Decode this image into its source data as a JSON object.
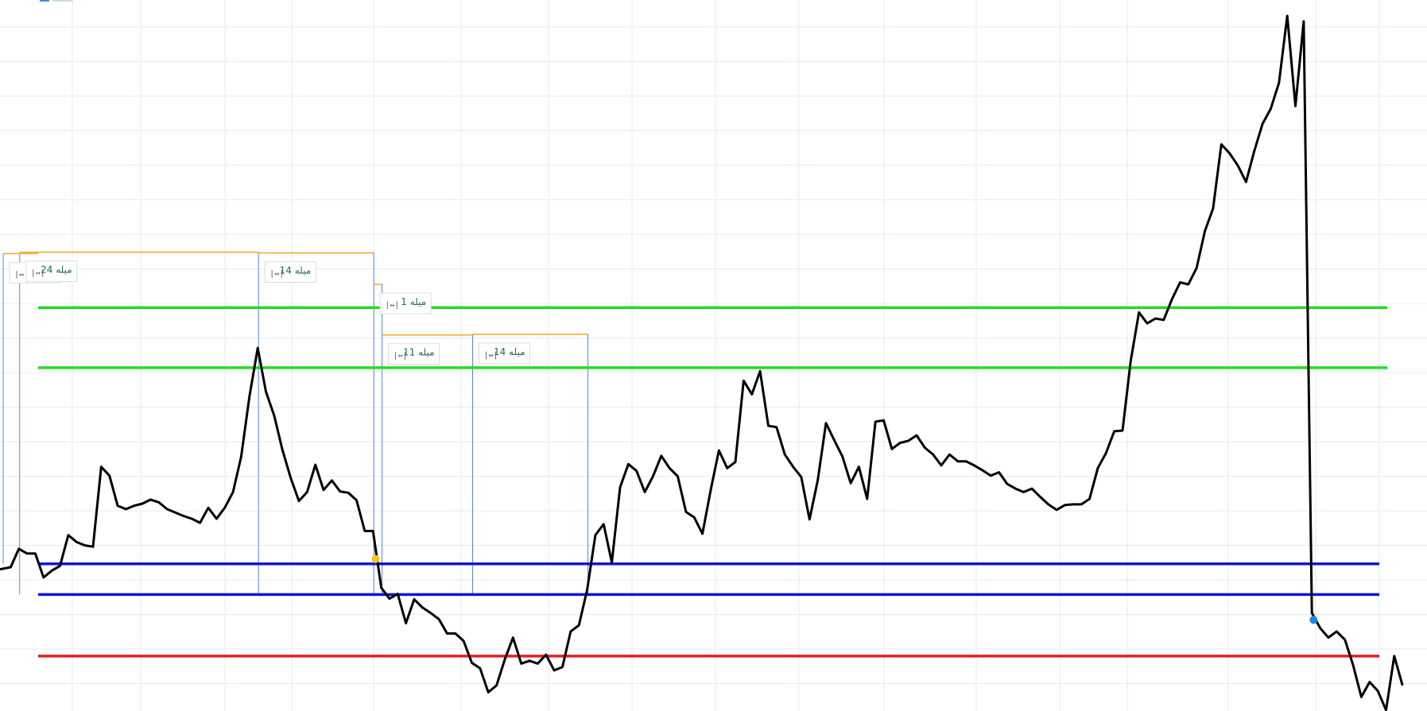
{
  "chart_data": {
    "type": "line",
    "title": "",
    "xlabel": "",
    "ylabel": "",
    "xlim": [
      -2,
      175
    ],
    "ylim": [
      0,
      100
    ],
    "grid": true,
    "series": [
      {
        "values": [
          [
            -1,
            19.0
          ],
          [
            0,
            19.3
          ],
          [
            1,
            22.0
          ],
          [
            2,
            21.3
          ],
          [
            3,
            21.3
          ],
          [
            4,
            17.8
          ],
          [
            5,
            18.8
          ],
          [
            6,
            19.5
          ],
          [
            7,
            24.0
          ],
          [
            8,
            23.0
          ],
          [
            9,
            22.5
          ],
          [
            10,
            22.3
          ],
          [
            11,
            34.0
          ],
          [
            12,
            32.7
          ],
          [
            13,
            28.3
          ],
          [
            14,
            27.8
          ],
          [
            15,
            28.3
          ],
          [
            16,
            28.6
          ],
          [
            17,
            29.2
          ],
          [
            18,
            28.8
          ],
          [
            19,
            27.8
          ],
          [
            20,
            27.3
          ],
          [
            21,
            26.8
          ],
          [
            22,
            26.4
          ],
          [
            23,
            25.8
          ],
          [
            24,
            28.0
          ],
          [
            25,
            26.4
          ],
          [
            26,
            28.0
          ],
          [
            27,
            30.3
          ],
          [
            28,
            35.5
          ],
          [
            29,
            44.3
          ],
          [
            30,
            51.4
          ],
          [
            31,
            45.0
          ],
          [
            32,
            41.5
          ],
          [
            33,
            36.5
          ],
          [
            34,
            32.4
          ],
          [
            35,
            29.0
          ],
          [
            36,
            30.3
          ],
          [
            37,
            34.3
          ],
          [
            38,
            30.6
          ],
          [
            39,
            32.0
          ],
          [
            40,
            30.4
          ],
          [
            41,
            30.2
          ],
          [
            42,
            29.1
          ],
          [
            43,
            24.6
          ],
          [
            44,
            24.6
          ],
          [
            45,
            16.3
          ],
          [
            46,
            14.7
          ],
          [
            47,
            15.4
          ],
          [
            48,
            11.1
          ],
          [
            49,
            14.6
          ],
          [
            50,
            13.4
          ],
          [
            51,
            12.6
          ],
          [
            52,
            11.7
          ],
          [
            53,
            9.6
          ],
          [
            54,
            9.6
          ],
          [
            55,
            8.5
          ],
          [
            56,
            5.3
          ],
          [
            57,
            4.5
          ],
          [
            58,
            1.0
          ],
          [
            59,
            2.0
          ],
          [
            60,
            5.8
          ],
          [
            61,
            9.0
          ],
          [
            62,
            5.2
          ],
          [
            63,
            5.6
          ],
          [
            64,
            5.2
          ],
          [
            65,
            6.5
          ],
          [
            66,
            4.2
          ],
          [
            67,
            4.7
          ],
          [
            68,
            9.9
          ],
          [
            69,
            10.8
          ],
          [
            70,
            16.0
          ],
          [
            71,
            24.0
          ],
          [
            72,
            25.6
          ],
          [
            73,
            20.0
          ],
          [
            74,
            31.0
          ],
          [
            75,
            34.4
          ],
          [
            76,
            33.4
          ],
          [
            77,
            30.3
          ],
          [
            78,
            32.6
          ],
          [
            79,
            35.6
          ],
          [
            80,
            33.8
          ],
          [
            81,
            32.6
          ],
          [
            82,
            27.4
          ],
          [
            83,
            26.6
          ],
          [
            84,
            24.2
          ],
          [
            85,
            30.6
          ],
          [
            86,
            36.4
          ],
          [
            87,
            33.8
          ],
          [
            88,
            34.7
          ],
          [
            89,
            46.6
          ],
          [
            90,
            44.6
          ],
          [
            91,
            48.0
          ],
          [
            92,
            40.0
          ],
          [
            93,
            39.8
          ],
          [
            94,
            35.8
          ],
          [
            95,
            34.0
          ],
          [
            96,
            32.5
          ],
          [
            97,
            26.3
          ],
          [
            98,
            32.0
          ],
          [
            99,
            40.4
          ],
          [
            100,
            37.9
          ],
          [
            101,
            35.5
          ],
          [
            102,
            31.6
          ],
          [
            103,
            34.0
          ],
          [
            104,
            29.3
          ],
          [
            105,
            40.6
          ],
          [
            106,
            40.8
          ],
          [
            107,
            36.6
          ],
          [
            108,
            37.5
          ],
          [
            109,
            37.8
          ],
          [
            110,
            38.6
          ],
          [
            111,
            36.8
          ],
          [
            112,
            35.8
          ],
          [
            113,
            34.2
          ],
          [
            114,
            35.8
          ],
          [
            115,
            34.8
          ],
          [
            116,
            34.8
          ],
          [
            117,
            34.2
          ],
          [
            118,
            33.5
          ],
          [
            119,
            32.7
          ],
          [
            120,
            33.2
          ],
          [
            121,
            31.5
          ],
          [
            122,
            30.8
          ],
          [
            123,
            30.3
          ],
          [
            124,
            30.8
          ],
          [
            125,
            29.6
          ],
          [
            126,
            28.5
          ],
          [
            127,
            27.7
          ],
          [
            128,
            28.4
          ],
          [
            129,
            28.5
          ],
          [
            130,
            28.5
          ],
          [
            131,
            29.3
          ],
          [
            132,
            33.8
          ],
          [
            133,
            36.0
          ],
          [
            134,
            39.2
          ],
          [
            135,
            39.3
          ],
          [
            136,
            49.5
          ],
          [
            137,
            56.6
          ],
          [
            138,
            55.0
          ],
          [
            139,
            55.7
          ],
          [
            140,
            55.5
          ],
          [
            141,
            58.5
          ],
          [
            142,
            61.0
          ],
          [
            143,
            60.7
          ],
          [
            144,
            63.1
          ],
          [
            145,
            68.5
          ],
          [
            146,
            71.8
          ],
          [
            147,
            81.2
          ],
          [
            148,
            79.9
          ],
          [
            149,
            78.1
          ],
          [
            150,
            75.7
          ],
          [
            151,
            80.2
          ],
          [
            152,
            84.2
          ],
          [
            153,
            86.4
          ],
          [
            154,
            90.2
          ],
          [
            155,
            100.0
          ],
          [
            156,
            86.8
          ],
          [
            157,
            99.2
          ],
          [
            158,
            12.6
          ],
          [
            159,
            10.4
          ],
          [
            160,
            9.0
          ],
          [
            161,
            9.9
          ],
          [
            162,
            8.7
          ],
          [
            163,
            5.0
          ],
          [
            164,
            0.3
          ],
          [
            165,
            2.5
          ],
          [
            166,
            1.2
          ],
          [
            167,
            -1.6
          ],
          [
            168,
            6.3
          ],
          [
            169,
            2.0
          ]
        ]
      }
    ],
    "horizontal_levels": [
      {
        "value": 57.3,
        "color": "#22dd22",
        "x_range": [
          -1,
          174
        ]
      },
      {
        "value": 48.5,
        "color": "#22dd22",
        "x_range": [
          -1,
          174
        ]
      },
      {
        "value": 19.8,
        "color": "#0f16d8",
        "x_range": [
          -1,
          174
        ]
      },
      {
        "value": 15.3,
        "color": "#0f16d8",
        "x_range": [
          -1,
          174
        ]
      },
      {
        "value": 6.3,
        "color": "#e3201e",
        "x_range": [
          -1,
          174
        ]
      }
    ],
    "annotations": [
      {
        "label": "میله 2",
        "x_range": [
          -1,
          1
        ],
        "top": 65.2
      },
      {
        "label": "میله 24",
        "x_range": [
          1,
          30
        ],
        "top": 65.4
      },
      {
        "label": "میله 14",
        "x_range": [
          30,
          44
        ],
        "top": 65.3
      },
      {
        "label": "میله 1",
        "x_range": [
          44,
          45
        ],
        "top": 60.7
      },
      {
        "label": "میله 11",
        "x_range": [
          45,
          56
        ],
        "top": 53.3
      },
      {
        "label": "میله 14",
        "x_range": [
          56,
          70
        ],
        "top": 53.4
      }
    ],
    "markers": [
      {
        "x": 44.3,
        "y": 20.5,
        "color": "#f5c518"
      },
      {
        "x": 158.2,
        "y": 11.6,
        "color": "#1e88e5"
      }
    ]
  }
}
